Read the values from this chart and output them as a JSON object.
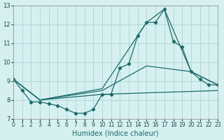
{
  "xlabel": "Humidex (Indice chaleur)",
  "ylabel": "",
  "xlim": [
    0,
    23
  ],
  "ylim": [
    7,
    13
  ],
  "xticks": [
    0,
    1,
    2,
    3,
    4,
    5,
    6,
    7,
    8,
    9,
    10,
    11,
    12,
    13,
    14,
    15,
    16,
    17,
    18,
    19,
    20,
    21,
    22,
    23
  ],
  "yticks": [
    7,
    8,
    9,
    10,
    11,
    12,
    13
  ],
  "background_color": "#d6f0f0",
  "grid_color": "#b0d8d8",
  "line_color": "#1a6b6b",
  "lines": [
    {
      "x": [
        0,
        1,
        2,
        3,
        4,
        5,
        6,
        7,
        8,
        9,
        10,
        11,
        12,
        13,
        14,
        15,
        16,
        17,
        18,
        19,
        20,
        21,
        22,
        23
      ],
      "y": [
        9.1,
        8.5,
        7.9,
        7.9,
        7.8,
        7.7,
        7.5,
        7.3,
        7.3,
        7.5,
        8.3,
        8.3,
        9.7,
        9.9,
        11.4,
        12.1,
        12.1,
        12.8,
        11.1,
        10.8,
        9.5,
        9.1,
        8.8,
        8.8
      ]
    },
    {
      "x": [
        0,
        3,
        10,
        15,
        17,
        20,
        23
      ],
      "y": [
        9.1,
        8.0,
        8.6,
        12.1,
        12.8,
        9.5,
        8.8
      ]
    },
    {
      "x": [
        0,
        3,
        10,
        15,
        20,
        23
      ],
      "y": [
        9.1,
        8.0,
        8.5,
        9.8,
        9.5,
        8.8
      ]
    },
    {
      "x": [
        0,
        3,
        10,
        23
      ],
      "y": [
        9.1,
        8.0,
        8.3,
        8.5
      ]
    }
  ]
}
